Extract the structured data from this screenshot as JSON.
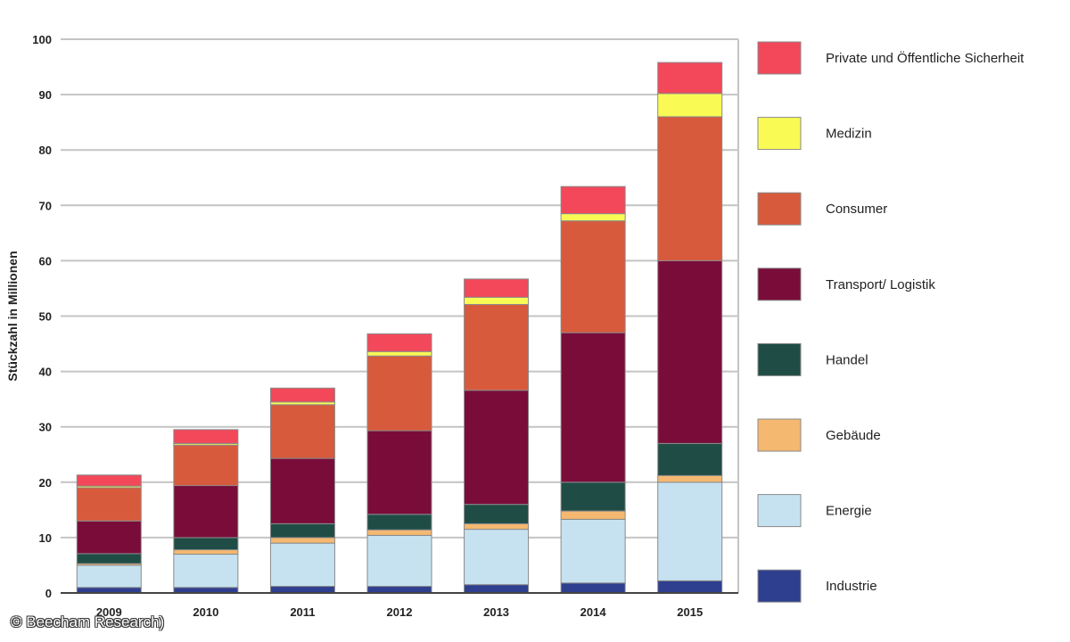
{
  "chart_data": {
    "type": "bar",
    "stacked": true,
    "title": "",
    "xlabel": "",
    "ylabel": "Stückzahl in Millionen",
    "ylim": [
      0,
      100
    ],
    "yticks": [
      0,
      10,
      20,
      30,
      40,
      50,
      60,
      70,
      80,
      90,
      100
    ],
    "grid": true,
    "legend_position": "right",
    "categories": [
      "2009",
      "2010",
      "2011",
      "2012",
      "2013",
      "2014",
      "2015"
    ],
    "series": [
      {
        "name": "Industrie",
        "color": "#2f3f8f",
        "values": [
          1,
          1,
          1.2,
          1.2,
          1.5,
          1.8,
          2.2
        ]
      },
      {
        "name": "Energie",
        "color": "#c6e2f0",
        "values": [
          4,
          6,
          7.8,
          9.2,
          10,
          11.5,
          17.8
        ]
      },
      {
        "name": "Gebäude",
        "color": "#f4b870",
        "values": [
          0.3,
          0.8,
          1,
          1,
          1,
          1.5,
          1.2
        ]
      },
      {
        "name": "Handel",
        "color": "#1f4d45",
        "values": [
          1.8,
          2.2,
          2.5,
          2.8,
          3.5,
          5.2,
          5.8
        ]
      },
      {
        "name": "Transport/ Logistik",
        "color": "#7a0c3a",
        "values": [
          5.9,
          9.4,
          11.8,
          15.1,
          20.6,
          27,
          33
        ]
      },
      {
        "name": "Consumer",
        "color": "#d85a3c",
        "values": [
          6,
          7.3,
          9.7,
          13.5,
          15.5,
          20.2,
          26
        ]
      },
      {
        "name": "Medizin",
        "color": "#fafa55",
        "values": [
          0.3,
          0.3,
          0.5,
          0.8,
          1.3,
          1.3,
          4.2
        ]
      },
      {
        "name": "Private und Öffentliche Sicherheit",
        "color": "#f2485a",
        "values": [
          2,
          2.5,
          2.5,
          3.2,
          3.3,
          4.9,
          5.6
        ]
      }
    ]
  },
  "legend_order": [
    "Private und Öffentliche Sicherheit",
    "Medizin",
    "Consumer",
    "Transport/ Logistik",
    "Handel",
    "Gebäude",
    "Energie",
    "Industrie"
  ],
  "copyright": "© Beecham Research)"
}
